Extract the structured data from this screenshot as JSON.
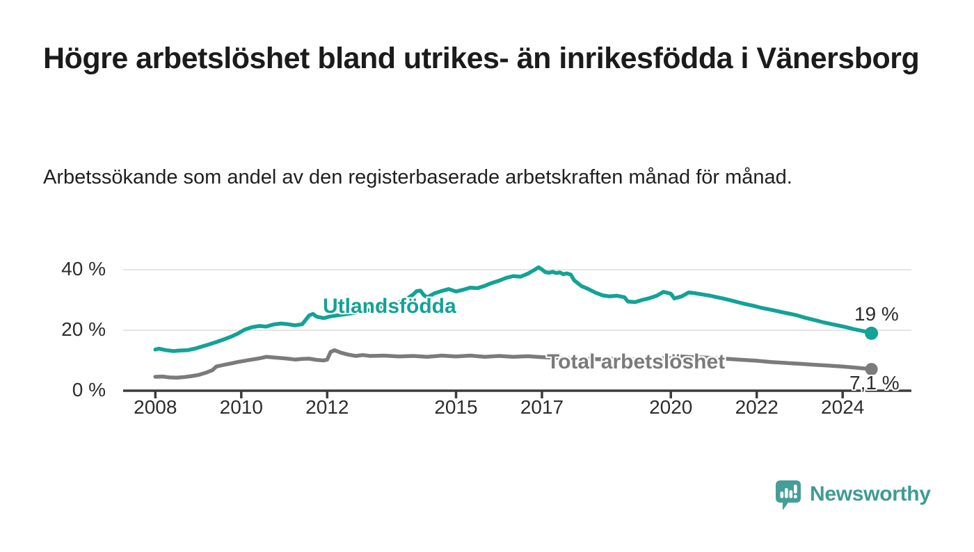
{
  "title": "Högre arbetslöshet bland utrikes- än inrikesfödda i Vänersborg",
  "subtitle": "Arbetssökande som andel av den registerbaserade arbetskraften månad för månad.",
  "branding": {
    "logo_text": "Newsworthy",
    "logo_icon": "speech-bubble-bar-chart-icon"
  },
  "colors": {
    "accent_teal": "#13a296",
    "series_gray": "#7b7b7b",
    "logo_teal": "#459e98",
    "grid": "#dcdcdc",
    "axis": "#3b3b3b",
    "title_text": "#1b1b1b",
    "axis_text": "#2d2d2d"
  },
  "chart_data": {
    "type": "line",
    "title": "Högre arbetslöshet bland utrikes- än inrikesfödda i Vänersborg",
    "subtitle": "Arbetssökande som andel av den registerbaserade arbetskraften månad för månad.",
    "unit": "percent",
    "grid": "horizontal-only",
    "x_axis": {
      "tick_values": [
        2008,
        2010,
        2012,
        2015,
        2017,
        2020,
        2022,
        2024
      ],
      "tick_labels": [
        "2008",
        "2010",
        "2012",
        "2015",
        "2017",
        "2020",
        "2022",
        "2024"
      ],
      "range": [
        2007.25,
        2025.6
      ]
    },
    "y_axis": {
      "tick_values": [
        0,
        20,
        40
      ],
      "tick_labels": [
        "0 %",
        "20 %",
        "40 %"
      ],
      "range": [
        0,
        42
      ]
    },
    "series": [
      {
        "name": "Utlandsfödda",
        "color": "#13a296",
        "end_label": "19 %",
        "end_value": 19.0,
        "points": [
          [
            2008.0,
            13.6
          ],
          [
            2008.08,
            13.9
          ],
          [
            2008.25,
            13.4
          ],
          [
            2008.42,
            13.1
          ],
          [
            2008.58,
            13.3
          ],
          [
            2008.75,
            13.4
          ],
          [
            2008.92,
            13.9
          ],
          [
            2009.08,
            14.6
          ],
          [
            2009.25,
            15.3
          ],
          [
            2009.42,
            16.1
          ],
          [
            2009.58,
            16.9
          ],
          [
            2009.75,
            17.8
          ],
          [
            2009.92,
            18.9
          ],
          [
            2010.08,
            20.2
          ],
          [
            2010.25,
            21.0
          ],
          [
            2010.42,
            21.4
          ],
          [
            2010.58,
            21.2
          ],
          [
            2010.75,
            21.9
          ],
          [
            2010.92,
            22.2
          ],
          [
            2011.08,
            22.0
          ],
          [
            2011.25,
            21.6
          ],
          [
            2011.42,
            22.0
          ],
          [
            2011.58,
            24.9
          ],
          [
            2011.67,
            25.4
          ],
          [
            2011.75,
            24.5
          ],
          [
            2011.92,
            24.0
          ],
          [
            2012.08,
            24.6
          ],
          [
            2012.33,
            25.1
          ],
          [
            2012.58,
            25.6
          ],
          [
            2012.83,
            26.2
          ],
          [
            2013.08,
            27.0
          ],
          [
            2013.33,
            27.8
          ],
          [
            2013.58,
            28.7
          ],
          [
            2013.83,
            30.2
          ],
          [
            2014.0,
            31.8
          ],
          [
            2014.08,
            32.9
          ],
          [
            2014.17,
            33.1
          ],
          [
            2014.25,
            31.6
          ],
          [
            2014.33,
            30.9
          ],
          [
            2014.5,
            32.2
          ],
          [
            2014.67,
            33.0
          ],
          [
            2014.83,
            33.6
          ],
          [
            2015.0,
            32.8
          ],
          [
            2015.17,
            33.4
          ],
          [
            2015.33,
            34.1
          ],
          [
            2015.5,
            33.9
          ],
          [
            2015.67,
            34.7
          ],
          [
            2015.83,
            35.6
          ],
          [
            2016.0,
            36.4
          ],
          [
            2016.17,
            37.3
          ],
          [
            2016.33,
            37.9
          ],
          [
            2016.5,
            37.7
          ],
          [
            2016.67,
            38.7
          ],
          [
            2016.83,
            40.0
          ],
          [
            2016.92,
            40.8
          ],
          [
            2017.0,
            40.1
          ],
          [
            2017.08,
            39.2
          ],
          [
            2017.17,
            39.0
          ],
          [
            2017.25,
            39.3
          ],
          [
            2017.33,
            38.9
          ],
          [
            2017.42,
            39.1
          ],
          [
            2017.5,
            38.5
          ],
          [
            2017.58,
            38.8
          ],
          [
            2017.67,
            38.4
          ],
          [
            2017.75,
            36.5
          ],
          [
            2017.92,
            34.6
          ],
          [
            2018.08,
            33.6
          ],
          [
            2018.25,
            32.4
          ],
          [
            2018.42,
            31.5
          ],
          [
            2018.58,
            31.2
          ],
          [
            2018.75,
            31.4
          ],
          [
            2018.92,
            30.9
          ],
          [
            2019.0,
            29.5
          ],
          [
            2019.17,
            29.3
          ],
          [
            2019.33,
            30.0
          ],
          [
            2019.5,
            30.6
          ],
          [
            2019.67,
            31.4
          ],
          [
            2019.83,
            32.7
          ],
          [
            2020.0,
            32.1
          ],
          [
            2020.08,
            30.5
          ],
          [
            2020.25,
            31.2
          ],
          [
            2020.42,
            32.5
          ],
          [
            2020.58,
            32.2
          ],
          [
            2020.75,
            31.8
          ],
          [
            2020.92,
            31.4
          ],
          [
            2021.08,
            30.9
          ],
          [
            2021.25,
            30.4
          ],
          [
            2021.42,
            29.8
          ],
          [
            2021.58,
            29.2
          ],
          [
            2021.75,
            28.6
          ],
          [
            2021.92,
            28.1
          ],
          [
            2022.08,
            27.5
          ],
          [
            2022.25,
            27.0
          ],
          [
            2022.42,
            26.5
          ],
          [
            2022.58,
            26.0
          ],
          [
            2022.75,
            25.5
          ],
          [
            2022.92,
            25.0
          ],
          [
            2023.08,
            24.3
          ],
          [
            2023.25,
            23.7
          ],
          [
            2023.42,
            23.1
          ],
          [
            2023.58,
            22.5
          ],
          [
            2023.75,
            22.0
          ],
          [
            2023.92,
            21.5
          ],
          [
            2024.08,
            21.0
          ],
          [
            2024.25,
            20.4
          ],
          [
            2024.42,
            19.9
          ],
          [
            2024.58,
            19.4
          ],
          [
            2024.67,
            19.0
          ]
        ]
      },
      {
        "name": "Total arbetslöshet",
        "color": "#7b7b7b",
        "end_label": "7,1 %",
        "end_value": 7.1,
        "points": [
          [
            2008.0,
            4.6
          ],
          [
            2008.17,
            4.7
          ],
          [
            2008.33,
            4.4
          ],
          [
            2008.5,
            4.3
          ],
          [
            2008.67,
            4.5
          ],
          [
            2008.83,
            4.8
          ],
          [
            2009.0,
            5.2
          ],
          [
            2009.17,
            5.9
          ],
          [
            2009.33,
            6.8
          ],
          [
            2009.42,
            8.0
          ],
          [
            2009.58,
            8.5
          ],
          [
            2009.75,
            9.0
          ],
          [
            2009.92,
            9.5
          ],
          [
            2010.08,
            9.9
          ],
          [
            2010.25,
            10.3
          ],
          [
            2010.42,
            10.7
          ],
          [
            2010.58,
            11.2
          ],
          [
            2010.75,
            11.0
          ],
          [
            2010.92,
            10.8
          ],
          [
            2011.08,
            10.6
          ],
          [
            2011.25,
            10.3
          ],
          [
            2011.42,
            10.5
          ],
          [
            2011.58,
            10.6
          ],
          [
            2011.75,
            10.2
          ],
          [
            2011.92,
            10.0
          ],
          [
            2012.0,
            10.3
          ],
          [
            2012.08,
            12.8
          ],
          [
            2012.17,
            13.4
          ],
          [
            2012.33,
            12.5
          ],
          [
            2012.5,
            11.9
          ],
          [
            2012.67,
            11.5
          ],
          [
            2012.83,
            11.8
          ],
          [
            2013.0,
            11.5
          ],
          [
            2013.33,
            11.6
          ],
          [
            2013.67,
            11.3
          ],
          [
            2014.0,
            11.5
          ],
          [
            2014.33,
            11.2
          ],
          [
            2014.67,
            11.6
          ],
          [
            2015.0,
            11.3
          ],
          [
            2015.33,
            11.6
          ],
          [
            2015.67,
            11.2
          ],
          [
            2016.0,
            11.5
          ],
          [
            2016.33,
            11.2
          ],
          [
            2016.67,
            11.4
          ],
          [
            2017.0,
            11.1
          ],
          [
            2017.33,
            10.9
          ],
          [
            2017.67,
            10.7
          ],
          [
            2018.0,
            10.6
          ],
          [
            2018.33,
            10.4
          ],
          [
            2018.67,
            10.6
          ],
          [
            2019.0,
            10.3
          ],
          [
            2019.33,
            10.4
          ],
          [
            2019.67,
            10.6
          ],
          [
            2020.0,
            10.8
          ],
          [
            2020.25,
            11.3
          ],
          [
            2020.5,
            11.1
          ],
          [
            2020.75,
            11.0
          ],
          [
            2021.0,
            10.8
          ],
          [
            2021.33,
            10.5
          ],
          [
            2021.67,
            10.2
          ],
          [
            2022.0,
            9.9
          ],
          [
            2022.33,
            9.5
          ],
          [
            2022.67,
            9.2
          ],
          [
            2023.0,
            8.9
          ],
          [
            2023.33,
            8.6
          ],
          [
            2023.67,
            8.3
          ],
          [
            2024.0,
            8.0
          ],
          [
            2024.25,
            7.7
          ],
          [
            2024.5,
            7.35
          ],
          [
            2024.67,
            7.1
          ]
        ]
      }
    ]
  }
}
